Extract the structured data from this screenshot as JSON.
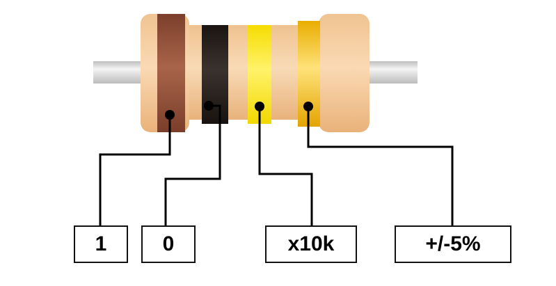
{
  "labels": {
    "band1": "1",
    "band2": "0",
    "multiplier": "x10k",
    "tolerance": "+/-5%"
  },
  "colors": {
    "body": "#f1c896",
    "body_shade": "#e3ad79",
    "lead": "#d8d8d8",
    "band1": "#8b4a32",
    "band2": "#1f1815",
    "band3": "#f9e000",
    "band4": "#e6b000",
    "wire": "#000000"
  },
  "bands": [
    {
      "name": "brown",
      "value": "1"
    },
    {
      "name": "black",
      "value": "0"
    },
    {
      "name": "yellow",
      "value": "x10k"
    },
    {
      "name": "gold",
      "value": "+/-5%"
    }
  ]
}
